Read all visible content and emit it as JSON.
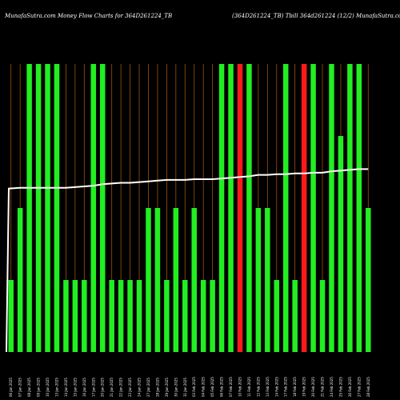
{
  "header": {
    "left_title": "MunafaSutra.com Money Flow Charts for 364D261224_TB",
    "right_title": "(364D261224_TB) Tbill 364d261224 (12/2) MunafaSutra.com"
  },
  "chart_data": {
    "type": "bar",
    "colors": {
      "up": "#22ee22",
      "down": "#ff1a1a",
      "grid": "#a0520a",
      "line": "#ffffff",
      "background": "#000000"
    },
    "categories": [
      "06 Jan 2025",
      "07 Jan 2025",
      "08 Jan 2025",
      "09 Jan 2025",
      "10 Jan 2025",
      "13 Jan 2025",
      "14 Jan 2025",
      "15 Jan 2025",
      "16 Jan 2025",
      "17 Jan 2025",
      "20 Jan 2025",
      "21 Jan 2025",
      "22 Jan 2025",
      "23 Jan 2025",
      "24 Jan 2025",
      "27 Jan 2025",
      "28 Jan 2025",
      "29 Jan 2025",
      "30 Jan 2025",
      "31 Jan 2025",
      "03 Feb 2025",
      "04 Feb 2025",
      "05 Feb 2025",
      "06 Feb 2025",
      "07 Feb 2025",
      "10 Feb 2025",
      "11 Feb 2025",
      "12 Feb 2025",
      "13 Feb 2025",
      "14 Feb 2025",
      "17 Feb 2025",
      "18 Feb 2025",
      "19 Feb 2025",
      "20 Feb 2025",
      "21 Feb 2025",
      "24 Feb 2025",
      "25 Feb 2025",
      "26 Feb 2025",
      "27 Feb 2025",
      "28 Feb 2025"
    ],
    "values": [
      1,
      2,
      4,
      4,
      4,
      4,
      1,
      1,
      1,
      4,
      4,
      1,
      1,
      1,
      1,
      2,
      2,
      1,
      2,
      1,
      2,
      1,
      1,
      4,
      4,
      4,
      4,
      2,
      2,
      1,
      4,
      1,
      4,
      4,
      1,
      4,
      3,
      4,
      4,
      2
    ],
    "bar_colors": [
      "up",
      "up",
      "up",
      "up",
      "up",
      "up",
      "up",
      "up",
      "up",
      "up",
      "up",
      "up",
      "up",
      "up",
      "up",
      "up",
      "up",
      "up",
      "up",
      "up",
      "up",
      "up",
      "up",
      "up",
      "up",
      "down",
      "up",
      "up",
      "up",
      "up",
      "up",
      "up",
      "down",
      "up",
      "up",
      "up",
      "up",
      "up",
      "up",
      "up"
    ],
    "line": [
      2.27,
      2.28,
      2.28,
      2.28,
      2.28,
      2.28,
      2.28,
      2.29,
      2.3,
      2.31,
      2.33,
      2.34,
      2.35,
      2.35,
      2.36,
      2.37,
      2.38,
      2.39,
      2.39,
      2.39,
      2.4,
      2.4,
      2.4,
      2.41,
      2.42,
      2.43,
      2.44,
      2.46,
      2.46,
      2.47,
      2.47,
      2.48,
      2.48,
      2.49,
      2.49,
      2.51,
      2.52,
      2.53,
      2.54,
      2.54
    ],
    "ylim": [
      0,
      4
    ],
    "grid": true
  }
}
